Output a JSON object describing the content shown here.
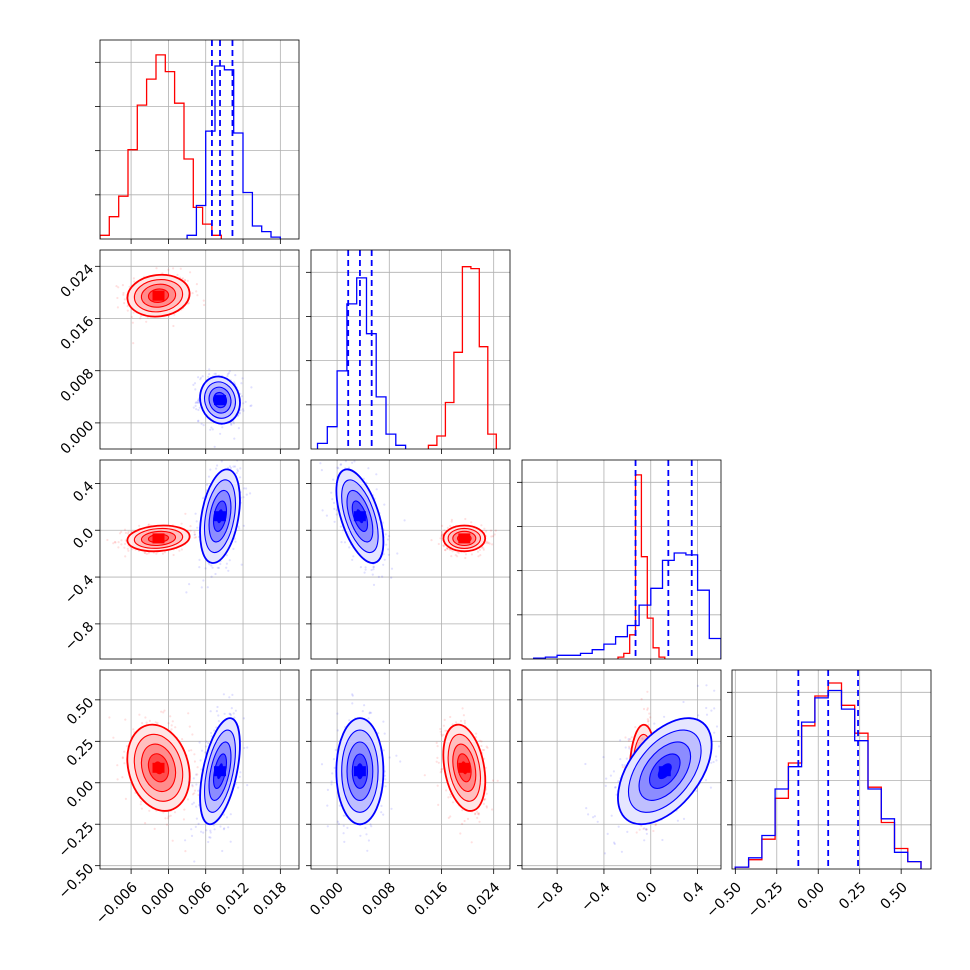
{
  "colors": {
    "series_a": "#ff0000",
    "series_b": "#0000ff",
    "grid": "#b0b0b0"
  },
  "chart_data": {
    "type": "corner",
    "grid": true,
    "params": [
      {
        "range": [
          -0.011,
          0.021
        ],
        "ticks": [
          -0.006,
          0.0,
          0.006,
          0.012,
          0.018
        ],
        "tick_labels": [
          "−0.006",
          "0.000",
          "0.006",
          "0.012",
          "0.018"
        ]
      },
      {
        "range": [
          -0.004,
          0.0265
        ],
        "ticks": [
          0.0,
          0.008,
          0.016,
          0.024
        ],
        "tick_labels": [
          "0.000",
          "0.008",
          "0.016",
          "0.024"
        ]
      },
      {
        "range": [
          -1.1,
          0.6
        ],
        "ticks": [
          -0.8,
          -0.4,
          0.0,
          0.4
        ],
        "tick_labels": [
          "−0.8",
          "−0.4",
          "0.0",
          "0.4"
        ]
      },
      {
        "range": [
          -0.52,
          0.68
        ],
        "ticks": [
          -0.5,
          -0.25,
          0.0,
          0.25,
          0.5
        ],
        "tick_labels": [
          "−0.50",
          "−0.25",
          "0.00",
          "0.25",
          "0.50"
        ]
      }
    ],
    "series": [
      {
        "color": "#ff0000",
        "mean": [
          -0.0016,
          0.0195,
          -0.07,
          0.09
        ],
        "std": [
          0.0025,
          0.0016,
          0.055,
          0.13
        ],
        "corr": {
          "0-1": 0.1,
          "0-2": 0.15,
          "1-2": 0.0,
          "0-3": -0.2,
          "1-3": -0.3,
          "2-3": 0.1
        },
        "quantiles": [],
        "hist_ylim": [
          0,
          1.07
        ],
        "histograms": [
          {
            "edges": [
              -0.011,
              -0.0095,
              -0.008,
              -0.0065,
              -0.005,
              -0.0035,
              -0.002,
              -0.0005,
              0.001,
              0.0025,
              0.004,
              0.0055,
              0.007,
              0.0085
            ],
            "counts": [
              0.02,
              0.12,
              0.23,
              0.48,
              0.72,
              0.86,
              0.99,
              0.9,
              0.73,
              0.43,
              0.17,
              0.08,
              0.02
            ]
          },
          {
            "edges": [
              0.014,
              0.0153,
              0.0166,
              0.0179,
              0.0192,
              0.0205,
              0.0218,
              0.0231,
              0.0244
            ],
            "counts": [
              0.02,
              0.07,
              0.25,
              0.52,
              0.98,
              0.97,
              0.55,
              0.08
            ]
          },
          {
            "edges": [
              -0.28,
              -0.23,
              -0.18,
              -0.13,
              -0.08,
              -0.03,
              0.02,
              0.07,
              0.12
            ],
            "counts": [
              0.01,
              0.03,
              0.13,
              0.99,
              0.55,
              0.22,
              0.06,
              0.01
            ]
          },
          {
            "edges": [
              -0.5,
              -0.42,
              -0.34,
              -0.26,
              -0.18,
              -0.1,
              -0.02,
              0.06,
              0.14,
              0.22,
              0.3,
              0.38,
              0.46,
              0.54,
              0.62
            ],
            "counts": [
              0.01,
              0.05,
              0.16,
              0.38,
              0.57,
              0.77,
              0.93,
              1.0,
              0.88,
              0.73,
              0.44,
              0.25,
              0.11,
              0.04
            ]
          }
        ]
      },
      {
        "color": "#0000ff",
        "mean": [
          0.0083,
          0.0035,
          0.12,
          0.07
        ],
        "std": [
          0.0016,
          0.0018,
          0.2,
          0.16
        ],
        "corr": {
          "0-1": -0.1,
          "0-2": 0.35,
          "1-2": -0.55,
          "0-3": 0.5,
          "1-3": 0.0,
          "2-3": 0.5
        },
        "quantiles": [
          [
            0.007,
            0.0083,
            0.0103
          ],
          [
            0.0017,
            0.0035,
            0.0053
          ],
          [
            -0.13,
            0.15,
            0.35
          ],
          [
            -0.12,
            0.06,
            0.24
          ]
        ],
        "hist_ylim": [
          0,
          1.07
        ],
        "histograms": [
          {
            "edges": [
              0.003,
              0.0045,
              0.006,
              0.0075,
              0.009,
              0.0105,
              0.012,
              0.0135,
              0.015,
              0.0165,
              0.018
            ],
            "counts": [
              0.02,
              0.18,
              0.58,
              0.93,
              0.91,
              0.57,
              0.25,
              0.07,
              0.04,
              0.01
            ]
          },
          {
            "edges": [
              -0.003,
              -0.0015,
              0.0,
              0.0015,
              0.003,
              0.0045,
              0.006,
              0.0075,
              0.009,
              0.0105
            ],
            "counts": [
              0.03,
              0.12,
              0.42,
              0.78,
              0.92,
              0.62,
              0.28,
              0.08,
              0.02
            ]
          },
          {
            "edges": [
              -1.0,
              -0.9,
              -0.8,
              -0.7,
              -0.6,
              -0.5,
              -0.4,
              -0.3,
              -0.2,
              -0.1,
              0.0,
              0.1,
              0.2,
              0.3,
              0.4,
              0.5,
              0.6
            ],
            "counts": [
              0.005,
              0.01,
              0.02,
              0.02,
              0.03,
              0.05,
              0.08,
              0.12,
              0.18,
              0.29,
              0.38,
              0.53,
              0.57,
              0.56,
              0.37,
              0.11
            ]
          },
          {
            "edges": [
              -0.5,
              -0.42,
              -0.34,
              -0.26,
              -0.18,
              -0.1,
              -0.02,
              0.06,
              0.14,
              0.22,
              0.3,
              0.38,
              0.46,
              0.54,
              0.62
            ],
            "counts": [
              0.01,
              0.06,
              0.18,
              0.43,
              0.55,
              0.79,
              0.92,
              0.96,
              0.86,
              0.69,
              0.43,
              0.27,
              0.09,
              0.04
            ]
          }
        ]
      }
    ]
  }
}
